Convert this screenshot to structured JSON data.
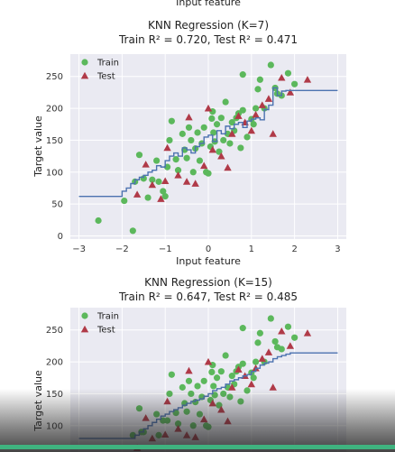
{
  "header": {
    "cut_label": "Input feature"
  },
  "colors": {
    "train": "#5cb85c",
    "test": "#b03a48",
    "line": "#4c72b0",
    "plot_bg": "#eaeaf2",
    "grid": "#ffffff",
    "progress": "#3fb37f"
  },
  "chart_data": [
    {
      "type": "scatter",
      "title": "KNN Regression (K=7)",
      "subtitle": "Train R² = 0.720,  Test R² = 0.471",
      "xlabel": "Input feature",
      "ylabel": "Target value",
      "xlim": [
        -3.2,
        3.2
      ],
      "ylim": [
        -5,
        285
      ],
      "xticks": [
        -3,
        -2,
        -1,
        0,
        1,
        2,
        3
      ],
      "yticks": [
        0,
        50,
        100,
        150,
        200,
        250
      ],
      "legend_position": "top-left",
      "series": [
        {
          "name": "Train",
          "marker": "circle",
          "points": [
            [
              -2.55,
              24
            ],
            [
              -1.95,
              55
            ],
            [
              -1.75,
              8
            ],
            [
              -1.7,
              85
            ],
            [
              -1.6,
              127
            ],
            [
              -1.5,
              90
            ],
            [
              -1.4,
              60
            ],
            [
              -1.3,
              88
            ],
            [
              -1.2,
              118
            ],
            [
              -1.15,
              85
            ],
            [
              -1.05,
              70
            ],
            [
              -1.0,
              62
            ],
            [
              -0.95,
              108
            ],
            [
              -0.9,
              150
            ],
            [
              -0.85,
              180
            ],
            [
              -0.75,
              120
            ],
            [
              -0.7,
              103
            ],
            [
              -0.6,
              160
            ],
            [
              -0.55,
              135
            ],
            [
              -0.5,
              122
            ],
            [
              -0.45,
              170
            ],
            [
              -0.4,
              150
            ],
            [
              -0.35,
              100
            ],
            [
              -0.3,
              137
            ],
            [
              -0.25,
              162
            ],
            [
              -0.2,
              118
            ],
            [
              -0.15,
              145
            ],
            [
              -0.1,
              170
            ],
            [
              -0.05,
              100
            ],
            [
              0.0,
              98
            ],
            [
              0.05,
              140
            ],
            [
              0.08,
              184
            ],
            [
              0.1,
              195
            ],
            [
              0.12,
              162
            ],
            [
              0.15,
              148
            ],
            [
              0.2,
              175
            ],
            [
              0.25,
              132
            ],
            [
              0.3,
              185
            ],
            [
              0.35,
              150
            ],
            [
              0.4,
              210
            ],
            [
              0.45,
              160
            ],
            [
              0.5,
              145
            ],
            [
              0.55,
              178
            ],
            [
              0.6,
              165
            ],
            [
              0.65,
              185
            ],
            [
              0.7,
              192
            ],
            [
              0.75,
              138
            ],
            [
              0.8,
              197
            ],
            [
              0.9,
              155
            ],
            [
              1.0,
              183
            ],
            [
              1.05,
              175
            ],
            [
              1.1,
              200
            ],
            [
              1.15,
              230
            ],
            [
              1.2,
              245
            ],
            [
              1.3,
              200
            ],
            [
              1.45,
              268
            ],
            [
              1.55,
              232
            ],
            [
              1.6,
              223
            ],
            [
              1.7,
              220
            ],
            [
              1.85,
              255
            ],
            [
              2.0,
              238
            ],
            [
              0.8,
              253
            ]
          ]
        },
        {
          "name": "Test",
          "marker": "triangle",
          "points": [
            [
              -1.65,
              65
            ],
            [
              -1.45,
              112
            ],
            [
              -1.3,
              80
            ],
            [
              -1.1,
              58
            ],
            [
              -1.0,
              86
            ],
            [
              -0.95,
              138
            ],
            [
              -0.7,
              95
            ],
            [
              -0.5,
              85
            ],
            [
              -0.45,
              186
            ],
            [
              -0.3,
              82
            ],
            [
              -0.1,
              110
            ],
            [
              0.0,
              200
            ],
            [
              0.1,
              135
            ],
            [
              0.3,
              125
            ],
            [
              0.45,
              107
            ],
            [
              0.55,
              160
            ],
            [
              0.7,
              188
            ],
            [
              0.85,
              178
            ],
            [
              1.0,
              165
            ],
            [
              1.1,
              190
            ],
            [
              1.25,
              205
            ],
            [
              1.4,
              215
            ],
            [
              1.5,
              160
            ],
            [
              1.7,
              248
            ],
            [
              1.9,
              225
            ],
            [
              2.3,
              245
            ]
          ]
        }
      ],
      "prediction_line": {
        "x": [
          -3.0,
          -2.1,
          -2.0,
          -1.9,
          -1.8,
          -1.7,
          -1.6,
          -1.5,
          -1.4,
          -1.3,
          -1.2,
          -1.1,
          -1.0,
          -0.9,
          -0.8,
          -0.7,
          -0.6,
          -0.5,
          -0.4,
          -0.3,
          -0.2,
          -0.1,
          0.0,
          0.1,
          0.2,
          0.3,
          0.4,
          0.5,
          0.6,
          0.7,
          0.8,
          0.9,
          1.0,
          1.1,
          1.2,
          1.3,
          1.4,
          1.5,
          1.6,
          1.7,
          1.8,
          1.9,
          2.0,
          3.0
        ],
        "y": [
          62,
          62,
          70,
          75,
          82,
          88,
          92,
          95,
          100,
          103,
          110,
          108,
          118,
          125,
          130,
          125,
          138,
          135,
          130,
          140,
          145,
          155,
          158,
          148,
          165,
          160,
          172,
          168,
          175,
          178,
          170,
          180,
          183,
          185,
          182,
          198,
          205,
          232,
          220,
          227,
          228,
          228,
          228,
          228
        ]
      }
    },
    {
      "type": "scatter",
      "title": "KNN Regression (K=15)",
      "subtitle": "Train R² = 0.647,  Test R² = 0.485",
      "xlabel": "",
      "ylabel": "Target value",
      "xlim": [
        -3.2,
        3.2
      ],
      "ylim": [
        -5,
        285
      ],
      "xticks": [],
      "yticks": [
        100,
        150,
        200,
        250
      ],
      "legend_position": "top-left",
      "series": [
        {
          "name": "Train",
          "marker": "circle",
          "points": [
            [
              -1.75,
              85
            ],
            [
              -1.6,
              127
            ],
            [
              -1.5,
              90
            ],
            [
              -1.2,
              118
            ],
            [
              -1.15,
              85
            ],
            [
              -1.05,
              108
            ],
            [
              -0.95,
              108
            ],
            [
              -0.9,
              150
            ],
            [
              -0.85,
              180
            ],
            [
              -0.75,
              120
            ],
            [
              -0.7,
              103
            ],
            [
              -0.6,
              160
            ],
            [
              -0.55,
              135
            ],
            [
              -0.5,
              122
            ],
            [
              -0.45,
              170
            ],
            [
              -0.4,
              150
            ],
            [
              -0.35,
              100
            ],
            [
              -0.3,
              137
            ],
            [
              -0.25,
              162
            ],
            [
              -0.2,
              118
            ],
            [
              -0.15,
              145
            ],
            [
              -0.1,
              170
            ],
            [
              -0.05,
              100
            ],
            [
              0.0,
              98
            ],
            [
              0.05,
              140
            ],
            [
              0.08,
              184
            ],
            [
              0.1,
              195
            ],
            [
              0.12,
              162
            ],
            [
              0.15,
              148
            ],
            [
              0.2,
              175
            ],
            [
              0.25,
              132
            ],
            [
              0.3,
              185
            ],
            [
              0.35,
              150
            ],
            [
              0.4,
              210
            ],
            [
              0.45,
              160
            ],
            [
              0.5,
              145
            ],
            [
              0.55,
              178
            ],
            [
              0.6,
              165
            ],
            [
              0.65,
              185
            ],
            [
              0.7,
              192
            ],
            [
              0.75,
              138
            ],
            [
              0.8,
              197
            ],
            [
              0.9,
              155
            ],
            [
              1.0,
              183
            ],
            [
              1.05,
              175
            ],
            [
              1.1,
              200
            ],
            [
              1.15,
              230
            ],
            [
              1.2,
              245
            ],
            [
              1.3,
              200
            ],
            [
              1.45,
              268
            ],
            [
              1.55,
              232
            ],
            [
              1.6,
              223
            ],
            [
              1.7,
              220
            ],
            [
              1.85,
              255
            ],
            [
              2.0,
              238
            ],
            [
              0.8,
              253
            ],
            [
              -1.55,
              90
            ]
          ]
        },
        {
          "name": "Test",
          "marker": "triangle",
          "points": [
            [
              -1.65,
              65
            ],
            [
              -1.45,
              112
            ],
            [
              -1.3,
              80
            ],
            [
              -1.0,
              86
            ],
            [
              -0.95,
              138
            ],
            [
              -0.7,
              95
            ],
            [
              -0.5,
              85
            ],
            [
              -0.45,
              186
            ],
            [
              -0.3,
              82
            ],
            [
              -0.1,
              110
            ],
            [
              0.0,
              200
            ],
            [
              0.1,
              135
            ],
            [
              0.3,
              125
            ],
            [
              0.45,
              107
            ],
            [
              0.55,
              160
            ],
            [
              0.7,
              188
            ],
            [
              0.85,
              178
            ],
            [
              1.0,
              165
            ],
            [
              1.1,
              190
            ],
            [
              1.25,
              205
            ],
            [
              1.4,
              215
            ],
            [
              1.5,
              160
            ],
            [
              1.7,
              248
            ],
            [
              1.9,
              225
            ],
            [
              2.3,
              245
            ]
          ]
        }
      ],
      "prediction_line": {
        "x": [
          -3.0,
          -1.8,
          -1.7,
          -1.6,
          -1.5,
          -1.4,
          -1.3,
          -1.2,
          -1.1,
          -1.0,
          -0.9,
          -0.8,
          -0.7,
          -0.6,
          -0.5,
          -0.4,
          -0.3,
          -0.2,
          -0.1,
          0.0,
          0.1,
          0.2,
          0.3,
          0.4,
          0.5,
          0.6,
          0.7,
          0.8,
          0.9,
          1.0,
          1.1,
          1.2,
          1.3,
          1.4,
          1.5,
          1.6,
          1.7,
          1.8,
          1.9,
          3.0
        ],
        "y": [
          80,
          80,
          85,
          90,
          95,
          100,
          105,
          110,
          115,
          118,
          122,
          125,
          128,
          132,
          135,
          138,
          140,
          142,
          146,
          150,
          155,
          158,
          160,
          165,
          170,
          172,
          175,
          178,
          180,
          185,
          190,
          195,
          198,
          200,
          205,
          208,
          210,
          212,
          214,
          214
        ]
      }
    }
  ],
  "player": {
    "progress_fraction": 1.0
  }
}
